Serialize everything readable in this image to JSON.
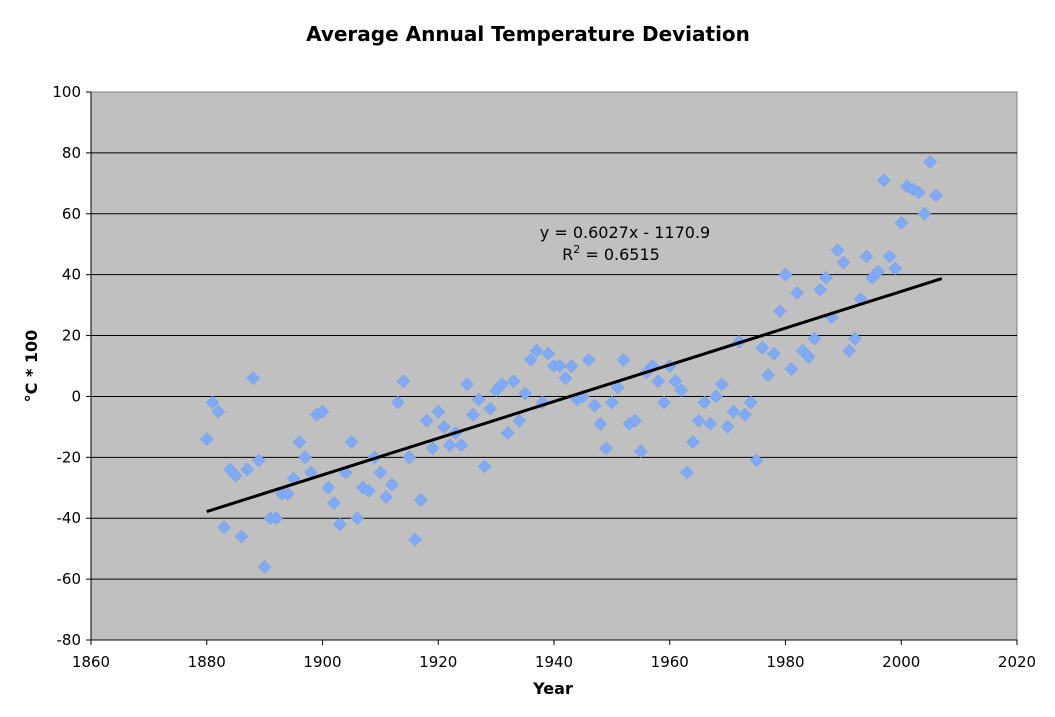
{
  "chart_data": {
    "type": "scatter",
    "title": "Average Annual Temperature Deviation",
    "xlabel": "Year",
    "ylabel": "°C * 100",
    "xlim": [
      1860,
      2020
    ],
    "ylim": [
      -80,
      100
    ],
    "x_ticks": [
      "1860",
      "1880",
      "1900",
      "1920",
      "1940",
      "1960",
      "1980",
      "2000",
      "2020"
    ],
    "y_ticks": [
      "100",
      "80",
      "60",
      "40",
      "20",
      "0",
      "-20",
      "-40",
      "-60",
      "-80"
    ],
    "grid": "horizontal",
    "legend": "none",
    "plot_background": "#c0c0c0",
    "marker_color": "#7eaaf6",
    "trendline": {
      "slope": 0.6027,
      "intercept": -1170.9,
      "x_range": [
        1880,
        2007
      ],
      "color": "#000000",
      "equation_label": "y = 0.6027x - 1170.9",
      "r2_label_prefix": "R",
      "r2_label_sup": "2",
      "r2_label_value": " = 0.6515"
    },
    "series": [
      {
        "x": [
          1880,
          1881,
          1882,
          1883,
          1884,
          1885,
          1886,
          1887,
          1888,
          1889,
          1890,
          1891,
          1892,
          1893,
          1894,
          1895,
          1896,
          1897,
          1898,
          1899,
          1900,
          1901,
          1902,
          1903,
          1904,
          1905,
          1906,
          1907,
          1908,
          1909,
          1910,
          1911,
          1912,
          1913,
          1914,
          1915,
          1916,
          1917,
          1918,
          1919,
          1920,
          1921,
          1922,
          1923,
          1924,
          1925,
          1926,
          1927,
          1928,
          1929,
          1930,
          1931,
          1932,
          1933,
          1934,
          1935,
          1936,
          1937,
          1938,
          1939,
          1940,
          1941,
          1942,
          1943,
          1944,
          1945,
          1946,
          1947,
          1948,
          1949,
          1950,
          1951,
          1952,
          1953,
          1954,
          1955,
          1956,
          1957,
          1958,
          1959,
          1960,
          1961,
          1962,
          1963,
          1964,
          1965,
          1966,
          1967,
          1968,
          1969,
          1970,
          1971,
          1972,
          1973,
          1974,
          1975,
          1976,
          1977,
          1978,
          1979,
          1980,
          1981,
          1982,
          1983,
          1984,
          1985,
          1986,
          1987,
          1988,
          1989,
          1990,
          1991,
          1992,
          1993,
          1994,
          1995,
          1996,
          1997,
          1998,
          1999,
          2000,
          2001,
          2002,
          2003,
          2004,
          2005,
          2006
        ],
        "y": [
          -14,
          -2,
          -5,
          -43,
          -24,
          -26,
          -46,
          -24,
          6,
          -21,
          -56,
          -40,
          -40,
          -32,
          -32,
          -27,
          -15,
          -20,
          -25,
          -6,
          -5,
          -30,
          -35,
          -42,
          -25,
          -15,
          -40,
          -30,
          -31,
          -20,
          -25,
          -33,
          -29,
          -2,
          5,
          -20,
          -47,
          -34,
          -8,
          -17,
          -5,
          -10,
          -16,
          -12,
          -16,
          4,
          -6,
          -1,
          -23,
          -4,
          2,
          4,
          -12,
          5,
          -8,
          1,
          12,
          15,
          -2,
          14,
          10,
          10,
          6,
          10,
          -1,
          0,
          12,
          -3,
          -9,
          -17,
          -2,
          3,
          12,
          -9,
          -8,
          -18,
          8,
          10,
          5,
          -2,
          10,
          5,
          2,
          -25,
          -15,
          -8,
          -2,
          -9,
          0,
          4,
          -10,
          -5,
          18,
          -6,
          -2,
          -21,
          16,
          7,
          14,
          28,
          40,
          9,
          34,
          15,
          13,
          19,
          35,
          39,
          26,
          48,
          44,
          15,
          19,
          32,
          46,
          39,
          41,
          71,
          46,
          42,
          57,
          69,
          68,
          67,
          60,
          77,
          66
        ]
      }
    ]
  }
}
